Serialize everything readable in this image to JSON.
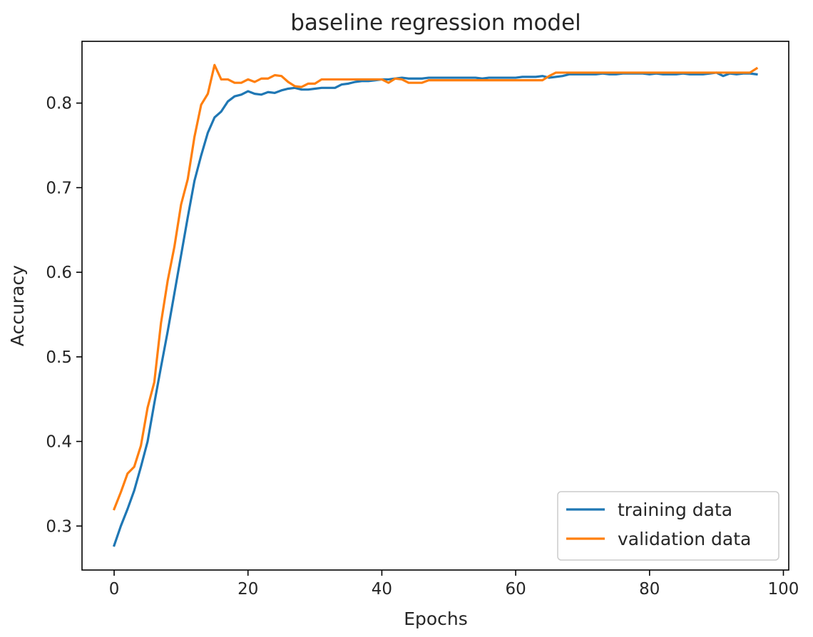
{
  "chart_data": {
    "type": "line",
    "title": "baseline regression model",
    "xlabel": "Epochs",
    "ylabel": "Accuracy",
    "xlim": [
      -4.8,
      100.8
    ],
    "ylim": [
      0.248,
      0.873
    ],
    "xticks": [
      0,
      20,
      40,
      60,
      80,
      100
    ],
    "yticks": [
      0.3,
      0.4,
      0.5,
      0.6,
      0.7,
      0.8
    ],
    "xtick_labels": [
      "0",
      "20",
      "40",
      "60",
      "80",
      "100"
    ],
    "ytick_labels": [
      "0.3",
      "0.4",
      "0.5",
      "0.6",
      "0.7",
      "0.8"
    ],
    "legend_position": "lower-right",
    "grid": false,
    "series": [
      {
        "name": "training data",
        "color": "#1f77b4",
        "points": [
          [
            0,
            0.277
          ],
          [
            1,
            0.3
          ],
          [
            2,
            0.32
          ],
          [
            3,
            0.342
          ],
          [
            4,
            0.37
          ],
          [
            5,
            0.4
          ],
          [
            6,
            0.445
          ],
          [
            7,
            0.488
          ],
          [
            8,
            0.53
          ],
          [
            9,
            0.575
          ],
          [
            10,
            0.62
          ],
          [
            11,
            0.665
          ],
          [
            12,
            0.708
          ],
          [
            13,
            0.738
          ],
          [
            14,
            0.765
          ],
          [
            15,
            0.783
          ],
          [
            16,
            0.79
          ],
          [
            17,
            0.802
          ],
          [
            18,
            0.808
          ],
          [
            19,
            0.81
          ],
          [
            20,
            0.814
          ],
          [
            21,
            0.811
          ],
          [
            22,
            0.81
          ],
          [
            23,
            0.813
          ],
          [
            24,
            0.812
          ],
          [
            25,
            0.815
          ],
          [
            26,
            0.817
          ],
          [
            27,
            0.818
          ],
          [
            28,
            0.816
          ],
          [
            29,
            0.816
          ],
          [
            30,
            0.817
          ],
          [
            31,
            0.818
          ],
          [
            32,
            0.818
          ],
          [
            33,
            0.818
          ],
          [
            34,
            0.822
          ],
          [
            35,
            0.823
          ],
          [
            36,
            0.825
          ],
          [
            37,
            0.826
          ],
          [
            38,
            0.826
          ],
          [
            39,
            0.827
          ],
          [
            40,
            0.828
          ],
          [
            41,
            0.828
          ],
          [
            42,
            0.829
          ],
          [
            43,
            0.83
          ],
          [
            44,
            0.829
          ],
          [
            45,
            0.829
          ],
          [
            46,
            0.829
          ],
          [
            47,
            0.83
          ],
          [
            48,
            0.83
          ],
          [
            49,
            0.83
          ],
          [
            50,
            0.83
          ],
          [
            51,
            0.83
          ],
          [
            52,
            0.83
          ],
          [
            53,
            0.83
          ],
          [
            54,
            0.83
          ],
          [
            55,
            0.829
          ],
          [
            56,
            0.83
          ],
          [
            57,
            0.83
          ],
          [
            58,
            0.83
          ],
          [
            59,
            0.83
          ],
          [
            60,
            0.83
          ],
          [
            61,
            0.831
          ],
          [
            62,
            0.831
          ],
          [
            63,
            0.831
          ],
          [
            64,
            0.832
          ],
          [
            65,
            0.83
          ],
          [
            66,
            0.831
          ],
          [
            67,
            0.832
          ],
          [
            68,
            0.834
          ],
          [
            69,
            0.834
          ],
          [
            70,
            0.834
          ],
          [
            71,
            0.834
          ],
          [
            72,
            0.834
          ],
          [
            73,
            0.835
          ],
          [
            74,
            0.834
          ],
          [
            75,
            0.834
          ],
          [
            76,
            0.835
          ],
          [
            77,
            0.835
          ],
          [
            78,
            0.835
          ],
          [
            79,
            0.835
          ],
          [
            80,
            0.834
          ],
          [
            81,
            0.835
          ],
          [
            82,
            0.834
          ],
          [
            83,
            0.834
          ],
          [
            84,
            0.834
          ],
          [
            85,
            0.835
          ],
          [
            86,
            0.834
          ],
          [
            87,
            0.834
          ],
          [
            88,
            0.834
          ],
          [
            89,
            0.835
          ],
          [
            90,
            0.836
          ],
          [
            91,
            0.832
          ],
          [
            92,
            0.835
          ],
          [
            93,
            0.834
          ],
          [
            94,
            0.835
          ],
          [
            95,
            0.835
          ],
          [
            96,
            0.834
          ]
        ]
      },
      {
        "name": "validation data",
        "color": "#ff7f0e",
        "points": [
          [
            0,
            0.32
          ],
          [
            1,
            0.34
          ],
          [
            2,
            0.362
          ],
          [
            3,
            0.37
          ],
          [
            4,
            0.395
          ],
          [
            5,
            0.44
          ],
          [
            6,
            0.47
          ],
          [
            7,
            0.54
          ],
          [
            8,
            0.59
          ],
          [
            9,
            0.63
          ],
          [
            10,
            0.68
          ],
          [
            11,
            0.71
          ],
          [
            12,
            0.76
          ],
          [
            13,
            0.798
          ],
          [
            14,
            0.811
          ],
          [
            15,
            0.845
          ],
          [
            16,
            0.828
          ],
          [
            17,
            0.828
          ],
          [
            18,
            0.824
          ],
          [
            19,
            0.824
          ],
          [
            20,
            0.828
          ],
          [
            21,
            0.825
          ],
          [
            22,
            0.829
          ],
          [
            23,
            0.829
          ],
          [
            24,
            0.833
          ],
          [
            25,
            0.832
          ],
          [
            26,
            0.825
          ],
          [
            27,
            0.82
          ],
          [
            28,
            0.819
          ],
          [
            29,
            0.823
          ],
          [
            30,
            0.823
          ],
          [
            31,
            0.828
          ],
          [
            32,
            0.828
          ],
          [
            33,
            0.828
          ],
          [
            34,
            0.828
          ],
          [
            35,
            0.828
          ],
          [
            36,
            0.828
          ],
          [
            37,
            0.828
          ],
          [
            38,
            0.828
          ],
          [
            39,
            0.828
          ],
          [
            40,
            0.828
          ],
          [
            41,
            0.824
          ],
          [
            42,
            0.829
          ],
          [
            43,
            0.828
          ],
          [
            44,
            0.824
          ],
          [
            45,
            0.824
          ],
          [
            46,
            0.824
          ],
          [
            47,
            0.827
          ],
          [
            48,
            0.827
          ],
          [
            49,
            0.827
          ],
          [
            50,
            0.827
          ],
          [
            51,
            0.827
          ],
          [
            52,
            0.827
          ],
          [
            53,
            0.827
          ],
          [
            54,
            0.827
          ],
          [
            55,
            0.827
          ],
          [
            56,
            0.827
          ],
          [
            57,
            0.827
          ],
          [
            58,
            0.827
          ],
          [
            59,
            0.827
          ],
          [
            60,
            0.827
          ],
          [
            61,
            0.827
          ],
          [
            62,
            0.827
          ],
          [
            63,
            0.827
          ],
          [
            64,
            0.827
          ],
          [
            65,
            0.832
          ],
          [
            66,
            0.836
          ],
          [
            67,
            0.836
          ],
          [
            68,
            0.836
          ],
          [
            69,
            0.836
          ],
          [
            70,
            0.836
          ],
          [
            71,
            0.836
          ],
          [
            72,
            0.836
          ],
          [
            73,
            0.836
          ],
          [
            74,
            0.836
          ],
          [
            75,
            0.836
          ],
          [
            76,
            0.836
          ],
          [
            77,
            0.836
          ],
          [
            78,
            0.836
          ],
          [
            79,
            0.836
          ],
          [
            80,
            0.836
          ],
          [
            81,
            0.836
          ],
          [
            82,
            0.836
          ],
          [
            83,
            0.836
          ],
          [
            84,
            0.836
          ],
          [
            85,
            0.836
          ],
          [
            86,
            0.836
          ],
          [
            87,
            0.836
          ],
          [
            88,
            0.836
          ],
          [
            89,
            0.836
          ],
          [
            90,
            0.836
          ],
          [
            91,
            0.836
          ],
          [
            92,
            0.836
          ],
          [
            93,
            0.836
          ],
          [
            94,
            0.836
          ],
          [
            95,
            0.836
          ],
          [
            96,
            0.841
          ]
        ]
      }
    ]
  }
}
